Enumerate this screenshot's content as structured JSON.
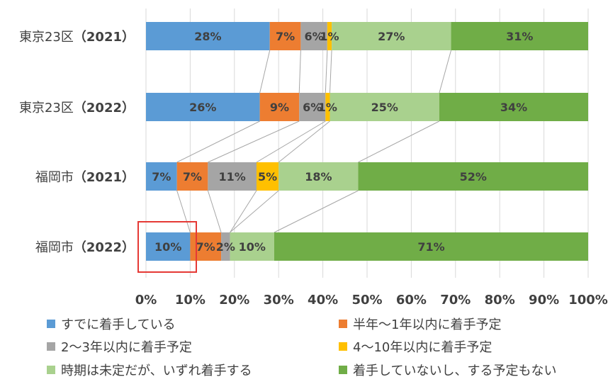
{
  "chart_data": {
    "type": "bar",
    "orientation": "horizontal",
    "stacked": "percent",
    "categories": [
      {
        "place": "東京23区",
        "year": "（2021）"
      },
      {
        "place": "東京23区",
        "year": "（2022）"
      },
      {
        "place": "福岡市",
        "year": "（2021）"
      },
      {
        "place": "福岡市",
        "year": "（2022）"
      }
    ],
    "series": [
      {
        "name": "すでに着手している",
        "color": "#5B9BD5",
        "values": [
          28,
          26,
          7,
          10
        ],
        "labels": [
          "28%",
          "26%",
          "7%",
          "10%"
        ]
      },
      {
        "name": "半年〜1年以内に着手予定",
        "color": "#ED7D31",
        "values": [
          7,
          9,
          7,
          7
        ],
        "labels": [
          "7%",
          "9%",
          "7%",
          "7%"
        ]
      },
      {
        "name": "2〜3年以内に着手予定",
        "color": "#A5A5A5",
        "values": [
          6,
          6,
          11,
          2
        ],
        "labels": [
          "6%",
          "6%",
          "11%",
          "2%"
        ]
      },
      {
        "name": "4〜10年以内に着手予定",
        "color": "#FFC000",
        "values": [
          1,
          1,
          5,
          0
        ],
        "labels": [
          "1%",
          "1%",
          "5%",
          ""
        ]
      },
      {
        "name": "時期は未定だが、いずれ着手する",
        "color": "#A9D18E",
        "values": [
          27,
          25,
          18,
          10
        ],
        "labels": [
          "27%",
          "25%",
          "18%",
          "10%"
        ]
      },
      {
        "name": "着手していないし、する予定もない",
        "color": "#70AD47",
        "values": [
          31,
          34,
          52,
          71
        ],
        "labels": [
          "31%",
          "34%",
          "52%",
          "71%"
        ]
      }
    ],
    "xticks": [
      "0%",
      "10%",
      "20%",
      "30%",
      "40%",
      "50%",
      "60%",
      "70%",
      "80%",
      "90%",
      "100%"
    ],
    "xlim": [
      0,
      100
    ],
    "grid": "vertical",
    "series_lines": true,
    "legend_position": "bottom",
    "highlight": {
      "category_index": 3,
      "series_index": 0,
      "color": "#E53935"
    }
  }
}
